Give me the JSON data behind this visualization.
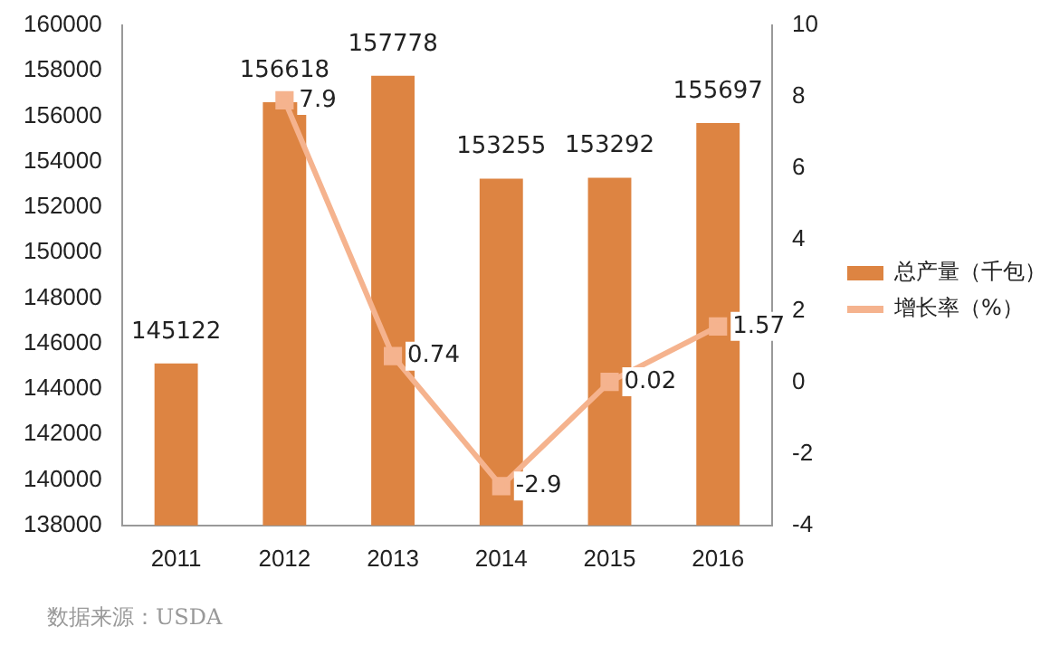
{
  "chart_data": {
    "type": "bar",
    "categories": [
      "2011",
      "2012",
      "2013",
      "2014",
      "2015",
      "2016"
    ],
    "series": [
      {
        "name": "总产量（千包）",
        "type": "bar",
        "color": "#dd8442",
        "values": [
          145122,
          156618,
          157778,
          153255,
          153292,
          155697
        ]
      },
      {
        "name": "增长率（%）",
        "type": "line",
        "axis": "y2",
        "color": "#f5b38e",
        "values": [
          null,
          7.9,
          0.74,
          -2.9,
          0.02,
          1.57
        ]
      }
    ],
    "ylim": [
      138000,
      160000
    ],
    "yticks": [
      138000,
      140000,
      142000,
      144000,
      146000,
      148000,
      150000,
      152000,
      154000,
      156000,
      158000,
      160000
    ],
    "y2lim": [
      -4,
      10
    ],
    "y2ticks": [
      -4,
      -2,
      0,
      2,
      4,
      6,
      8,
      10
    ],
    "grid": false,
    "legend": "right",
    "marker": "square",
    "data_labels": true,
    "annotations": [
      "数据来源：USDA"
    ]
  }
}
